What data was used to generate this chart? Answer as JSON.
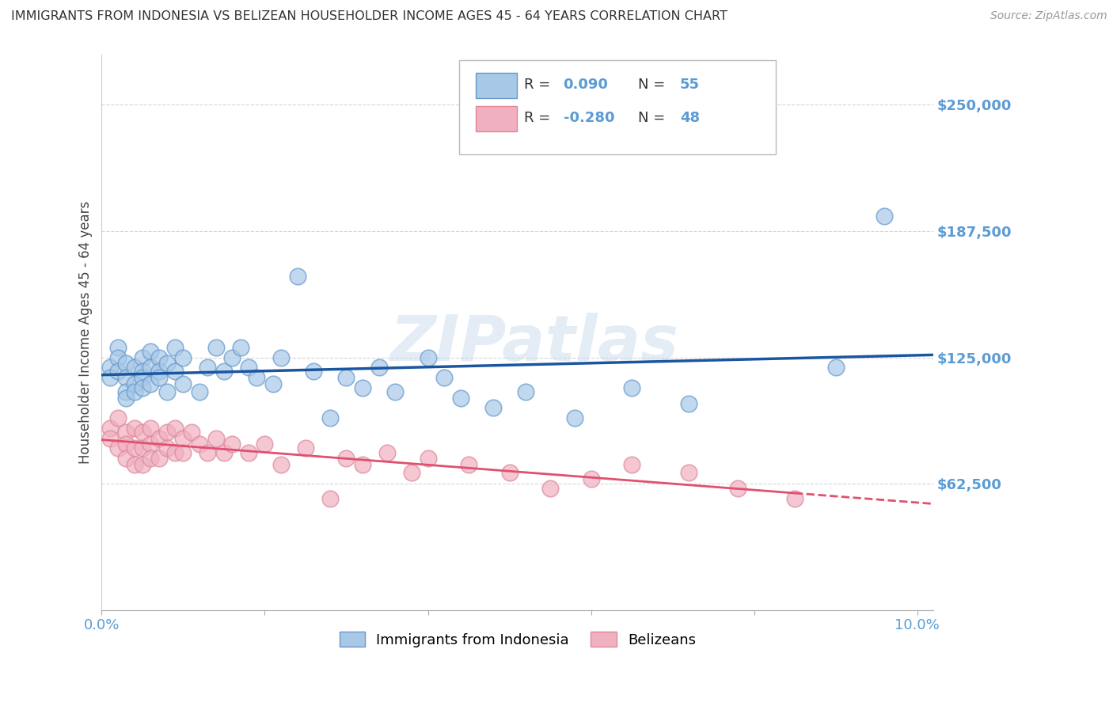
{
  "title": "IMMIGRANTS FROM INDONESIA VS BELIZEAN HOUSEHOLDER INCOME AGES 45 - 64 YEARS CORRELATION CHART",
  "source": "Source: ZipAtlas.com",
  "ylabel": "Householder Income Ages 45 - 64 years",
  "xlim": [
    0,
    0.102
  ],
  "ylim": [
    0,
    275000
  ],
  "yticks": [
    62500,
    125000,
    187500,
    250000
  ],
  "ytick_labels": [
    "$62,500",
    "$125,000",
    "$187,500",
    "$250,000"
  ],
  "xtick_labels_show": [
    "0.0%",
    "10.0%"
  ],
  "watermark": "ZIPatlas",
  "series": [
    {
      "name": "Immigrants from Indonesia",
      "R": 0.09,
      "N": 55,
      "dot_color": "#a8c8e8",
      "dot_edge": "#6699cc",
      "trend_color": "#1a56a0",
      "trend_dashed": false,
      "x": [
        0.001,
        0.001,
        0.002,
        0.002,
        0.002,
        0.003,
        0.003,
        0.003,
        0.003,
        0.004,
        0.004,
        0.004,
        0.005,
        0.005,
        0.005,
        0.005,
        0.006,
        0.006,
        0.006,
        0.007,
        0.007,
        0.007,
        0.008,
        0.008,
        0.009,
        0.009,
        0.01,
        0.01,
        0.012,
        0.013,
        0.014,
        0.015,
        0.016,
        0.017,
        0.018,
        0.019,
        0.021,
        0.022,
        0.024,
        0.026,
        0.028,
        0.03,
        0.032,
        0.034,
        0.036,
        0.04,
        0.042,
        0.044,
        0.048,
        0.052,
        0.058,
        0.065,
        0.072,
        0.09,
        0.096
      ],
      "y": [
        120000,
        115000,
        130000,
        125000,
        118000,
        122000,
        115000,
        108000,
        105000,
        120000,
        112000,
        108000,
        125000,
        118000,
        115000,
        110000,
        128000,
        120000,
        112000,
        125000,
        118000,
        115000,
        122000,
        108000,
        130000,
        118000,
        125000,
        112000,
        108000,
        120000,
        130000,
        118000,
        125000,
        130000,
        120000,
        115000,
        112000,
        125000,
        165000,
        118000,
        95000,
        115000,
        110000,
        120000,
        108000,
        125000,
        115000,
        105000,
        100000,
        108000,
        95000,
        110000,
        102000,
        120000,
        195000
      ]
    },
    {
      "name": "Belizeans",
      "R": -0.28,
      "N": 48,
      "dot_color": "#f0b0c0",
      "dot_edge": "#dd8899",
      "trend_color": "#e05070",
      "trend_dashed": false,
      "trend_dashed_ext": true,
      "x": [
        0.001,
        0.001,
        0.002,
        0.002,
        0.003,
        0.003,
        0.003,
        0.004,
        0.004,
        0.004,
        0.005,
        0.005,
        0.005,
        0.006,
        0.006,
        0.006,
        0.007,
        0.007,
        0.008,
        0.008,
        0.009,
        0.009,
        0.01,
        0.01,
        0.011,
        0.012,
        0.013,
        0.014,
        0.015,
        0.016,
        0.018,
        0.02,
        0.022,
        0.025,
        0.028,
        0.03,
        0.032,
        0.035,
        0.038,
        0.04,
        0.045,
        0.05,
        0.055,
        0.06,
        0.065,
        0.072,
        0.078,
        0.085
      ],
      "y": [
        90000,
        85000,
        95000,
        80000,
        88000,
        82000,
        75000,
        90000,
        80000,
        72000,
        88000,
        80000,
        72000,
        90000,
        82000,
        75000,
        85000,
        75000,
        88000,
        80000,
        90000,
        78000,
        85000,
        78000,
        88000,
        82000,
        78000,
        85000,
        78000,
        82000,
        78000,
        82000,
        72000,
        80000,
        55000,
        75000,
        72000,
        78000,
        68000,
        75000,
        72000,
        68000,
        60000,
        65000,
        72000,
        68000,
        60000,
        55000
      ]
    }
  ],
  "background_color": "#ffffff",
  "grid_color": "#cccccc",
  "axis_color": "#5b9bd5",
  "title_color": "#333333",
  "source_color": "#999999",
  "legend_color_R": "#5b9bd5",
  "legend_color_N": "#333333"
}
